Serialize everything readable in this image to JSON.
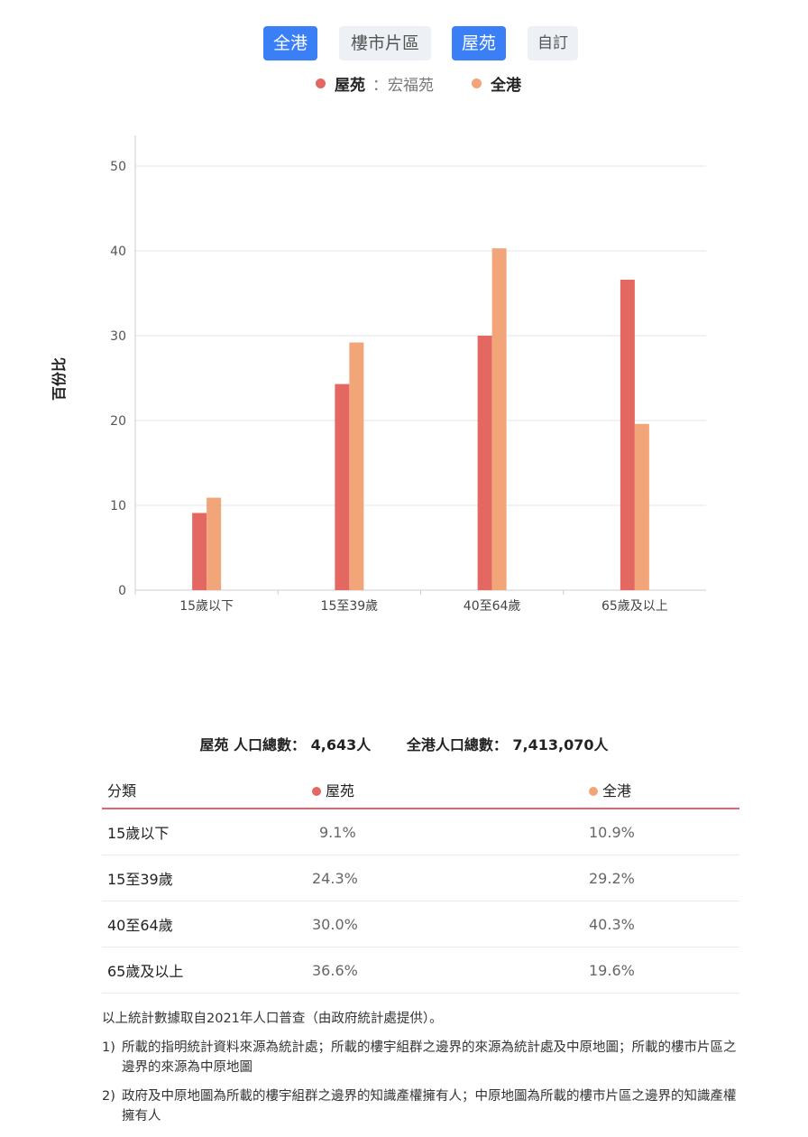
{
  "tabs": [
    {
      "label": "全港",
      "active": true
    },
    {
      "label": "樓市片區",
      "active": false
    },
    {
      "label": "屋苑",
      "active": true
    },
    {
      "label": "自訂",
      "active": false
    }
  ],
  "legend": {
    "estate_label": "屋苑",
    "estate_name": "：宏福苑",
    "hk_label": "全港"
  },
  "colors": {
    "estate": "#e36862",
    "hk": "#f3a57a",
    "active_tab": "#3a7ff6"
  },
  "chart_data": {
    "type": "bar",
    "ylabel": "百份比",
    "ylim": [
      0,
      50
    ],
    "yticks": [
      0,
      10,
      20,
      30,
      40,
      50
    ],
    "grid": true,
    "categories": [
      "15歲以下",
      "15至39歲",
      "40至64歲",
      "65歲及以上"
    ],
    "series": [
      {
        "name": "屋苑",
        "values": [
          9.1,
          24.3,
          30.0,
          36.6
        ]
      },
      {
        "name": "全港",
        "values": [
          10.9,
          29.2,
          40.3,
          19.6
        ]
      }
    ]
  },
  "totals": {
    "estate": "屋苑 人口總數： 4,643人",
    "hk": "全港人口總數： 7,413,070人"
  },
  "table": {
    "headers": [
      "分類",
      "屋苑",
      "全港"
    ],
    "rows": [
      [
        "15歲以下",
        "9.1%",
        "10.9%"
      ],
      [
        "15至39歲",
        "24.3%",
        "29.2%"
      ],
      [
        "40至64歲",
        "30.0%",
        "40.3%"
      ],
      [
        "65歲及以上",
        "36.6%",
        "19.6%"
      ]
    ]
  },
  "notes": {
    "intro": "以上統計數據取自2021年人口普查（由政府統計處提供）。",
    "items": [
      {
        "num": "1)",
        "text": "所載的指明統計資料來源為統計處；所載的樓宇組群之邊界的來源為統計處及中原地圖；所載的樓市片區之邊界的來源為中原地圖"
      },
      {
        "num": "2)",
        "text": "政府及中原地圖為所載的樓宇組群之邊界的知識產權擁有人；中原地圖為所載的樓市片區之邊界的知識產權擁有人"
      }
    ]
  }
}
